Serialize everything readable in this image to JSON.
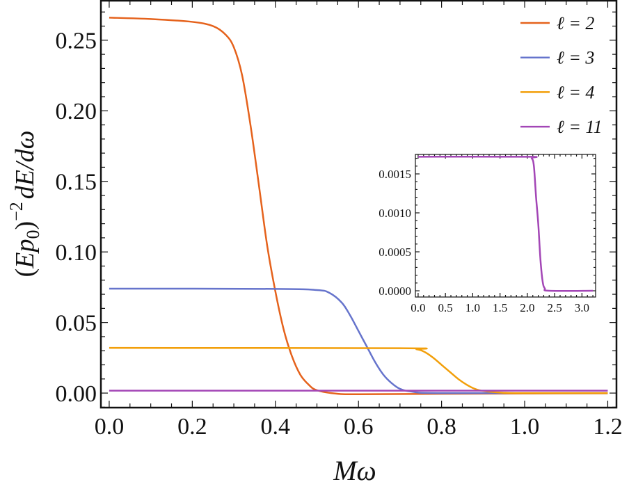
{
  "chart_data": [
    {
      "type": "line",
      "title": "",
      "xlabel": "Mω",
      "ylabel_parts": {
        "open": "(",
        "E": "E",
        "p": "p",
        "sub": "0",
        "close": ")",
        "sup": "−2",
        "rest": "dE/dω"
      },
      "xlim": [
        -0.02,
        1.221
      ],
      "ylim": [
        -0.0103,
        0.278
      ],
      "xticks": [
        "0.0",
        "0.2",
        "0.4",
        "0.6",
        "0.8",
        "1.0",
        "1.2"
      ],
      "yticks": [
        "0.00",
        "0.05",
        "0.10",
        "0.15",
        "0.20",
        "0.25"
      ],
      "grid": false,
      "legend_placement": "top-right",
      "series": [
        {
          "name": "ℓ = 2",
          "color": "#E5621C",
          "x": [
            0,
            0.1,
            0.2,
            0.25,
            0.28,
            0.3,
            0.32,
            0.34,
            0.36,
            0.38,
            0.4,
            0.42,
            0.44,
            0.46,
            0.48,
            0.5,
            0.55,
            0.6,
            0.8,
            1.0,
            1.2
          ],
          "y": [
            0.266,
            0.265,
            0.263,
            0.26,
            0.254,
            0.245,
            0.225,
            0.19,
            0.148,
            0.105,
            0.072,
            0.045,
            0.026,
            0.013,
            0.006,
            0.002,
            -0.0005,
            -0.0008,
            -0.0005,
            -0.0003,
            -0.0002
          ]
        },
        {
          "name": "ℓ = 3",
          "color": "#6674CC",
          "x": [
            0,
            0.4,
            0.5,
            0.53,
            0.56,
            0.58,
            0.6,
            0.62,
            0.64,
            0.66,
            0.68,
            0.7,
            0.73,
            0.8,
            1.2
          ],
          "y": [
            0.074,
            0.0738,
            0.073,
            0.071,
            0.064,
            0.055,
            0.044,
            0.033,
            0.022,
            0.013,
            0.007,
            0.003,
            0.001,
            0.0,
            0.0
          ]
        },
        {
          "name": "ℓ = 4",
          "color": "#F29F0A",
          "x": [
            0,
            0.7,
            0.74,
            0.76,
            0.78,
            0.8,
            0.82,
            0.84,
            0.86,
            0.88,
            0.9,
            0.95,
            1.0,
            1.2
          ],
          "y": [
            0.032,
            0.0318,
            0.031,
            0.029,
            0.025,
            0.02,
            0.015,
            0.01,
            0.006,
            0.003,
            0.0015,
            0.0002,
            0.0,
            0.0
          ]
        },
        {
          "name": "ℓ = 11",
          "color": "#A346B6",
          "x": [
            0,
            1.2
          ],
          "y": [
            0.0017,
            0.0017
          ]
        }
      ]
    },
    {
      "type": "line",
      "title": "inset",
      "xlim": [
        -0.05,
        3.25
      ],
      "ylim": [
        -8e-05,
        0.00175
      ],
      "xticks": [
        "0.0",
        "0.5",
        "1.0",
        "1.5",
        "2.0",
        "2.5",
        "3.0"
      ],
      "yticks": [
        "0.0000",
        "0.0005",
        "0.0010",
        "0.0015"
      ],
      "grid": false,
      "series": [
        {
          "color": "#A346B6",
          "x": [
            0,
            2.0,
            2.08,
            2.12,
            2.16,
            2.2,
            2.24,
            2.28,
            2.32,
            2.4,
            3.2
          ],
          "y": [
            0.00172,
            0.00172,
            0.0017,
            0.0016,
            0.0012,
            0.00086,
            0.0004,
            0.00012,
            3e-05,
            0.0,
            0.0
          ]
        }
      ]
    }
  ]
}
